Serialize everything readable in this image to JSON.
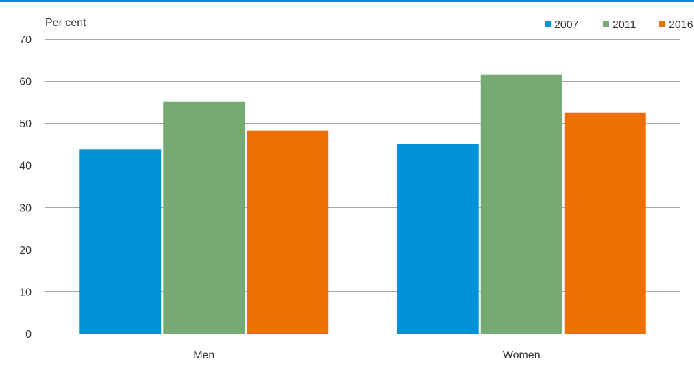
{
  "colors": {
    "top_rule": "#0090D6",
    "grid": "#A6A6A6",
    "axis_text": "#333333",
    "series": [
      "#0090D6",
      "#76AA73",
      "#EC7004"
    ]
  },
  "chart_data": {
    "type": "bar",
    "unit_label": "Per cent",
    "categories": [
      "Men",
      "Women"
    ],
    "series": [
      {
        "name": "2007",
        "values": [
          43.8,
          45.0
        ]
      },
      {
        "name": "2011",
        "values": [
          55.1,
          61.6
        ]
      },
      {
        "name": "2016",
        "values": [
          48.3,
          52.5
        ]
      }
    ],
    "ylim": [
      0,
      70
    ],
    "yticks": [
      "0",
      "10",
      "20",
      "30",
      "40",
      "50",
      "60",
      "70"
    ],
    "grid": true,
    "legend_position": "top-right"
  }
}
